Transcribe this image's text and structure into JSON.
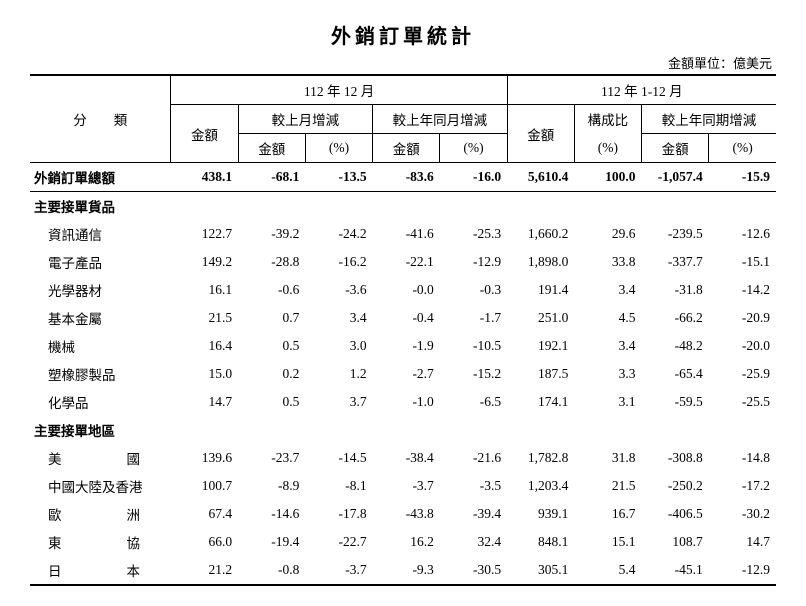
{
  "page": {
    "title": "外銷訂單統計",
    "unit_label": "金額單位：億美元",
    "background_color": "#ffffff",
    "text_color": "#000000",
    "title_fontsize": 20,
    "body_fontsize": 13.5
  },
  "header": {
    "category_label": "分　　類",
    "period_month": "112 年 12 月",
    "period_ytd": "112 年 1-12 月",
    "amount": "金額",
    "mom_change": "較上月增減",
    "yoy_change": "較上年同月增減",
    "yoy_ytd_change": "較上年同期增減",
    "share": "構成比",
    "pct": "(%)"
  },
  "rows": [
    {
      "type": "total",
      "label": "外銷訂單總額",
      "m_amt": "438.1",
      "mom_amt": "-68.1",
      "mom_pct": "-13.5",
      "yoy_amt": "-83.6",
      "yoy_pct": "-16.0",
      "y_amt": "5,610.4",
      "share": "100.0",
      "yoy_y_amt": "-1,057.4",
      "yoy_y_pct": "-15.9"
    },
    {
      "type": "section",
      "label": "主要接單貨品"
    },
    {
      "type": "data",
      "label": "資訊通信",
      "m_amt": "122.7",
      "mom_amt": "-39.2",
      "mom_pct": "-24.2",
      "yoy_amt": "-41.6",
      "yoy_pct": "-25.3",
      "y_amt": "1,660.2",
      "share": "29.6",
      "yoy_y_amt": "-239.5",
      "yoy_y_pct": "-12.6"
    },
    {
      "type": "data",
      "label": "電子產品",
      "m_amt": "149.2",
      "mom_amt": "-28.8",
      "mom_pct": "-16.2",
      "yoy_amt": "-22.1",
      "yoy_pct": "-12.9",
      "y_amt": "1,898.0",
      "share": "33.8",
      "yoy_y_amt": "-337.7",
      "yoy_y_pct": "-15.1"
    },
    {
      "type": "data",
      "label": "光學器材",
      "m_amt": "16.1",
      "mom_amt": "-0.6",
      "mom_pct": "-3.6",
      "yoy_amt": "-0.0",
      "yoy_pct": "-0.3",
      "y_amt": "191.4",
      "share": "3.4",
      "yoy_y_amt": "-31.8",
      "yoy_y_pct": "-14.2"
    },
    {
      "type": "data",
      "label": "基本金屬",
      "m_amt": "21.5",
      "mom_amt": "0.7",
      "mom_pct": "3.4",
      "yoy_amt": "-0.4",
      "yoy_pct": "-1.7",
      "y_amt": "251.0",
      "share": "4.5",
      "yoy_y_amt": "-66.2",
      "yoy_y_pct": "-20.9"
    },
    {
      "type": "data",
      "label": "機械",
      "m_amt": "16.4",
      "mom_amt": "0.5",
      "mom_pct": "3.0",
      "yoy_amt": "-1.9",
      "yoy_pct": "-10.5",
      "y_amt": "192.1",
      "share": "3.4",
      "yoy_y_amt": "-48.2",
      "yoy_y_pct": "-20.0"
    },
    {
      "type": "data",
      "label": "塑橡膠製品",
      "m_amt": "15.0",
      "mom_amt": "0.2",
      "mom_pct": "1.2",
      "yoy_amt": "-2.7",
      "yoy_pct": "-15.2",
      "y_amt": "187.5",
      "share": "3.3",
      "yoy_y_amt": "-65.4",
      "yoy_y_pct": "-25.9"
    },
    {
      "type": "data",
      "label": "化學品",
      "m_amt": "14.7",
      "mom_amt": "0.5",
      "mom_pct": "3.7",
      "yoy_amt": "-1.0",
      "yoy_pct": "-6.5",
      "y_amt": "174.1",
      "share": "3.1",
      "yoy_y_amt": "-59.5",
      "yoy_y_pct": "-25.5"
    },
    {
      "type": "section",
      "label": "主要接單地區"
    },
    {
      "type": "data",
      "label": "美　　　國",
      "justify": true,
      "m_amt": "139.6",
      "mom_amt": "-23.7",
      "mom_pct": "-14.5",
      "yoy_amt": "-38.4",
      "yoy_pct": "-21.6",
      "y_amt": "1,782.8",
      "share": "31.8",
      "yoy_y_amt": "-308.8",
      "yoy_y_pct": "-14.8"
    },
    {
      "type": "data",
      "label": "中國大陸及香港",
      "m_amt": "100.7",
      "mom_amt": "-8.9",
      "mom_pct": "-8.1",
      "yoy_amt": "-3.7",
      "yoy_pct": "-3.5",
      "y_amt": "1,203.4",
      "share": "21.5",
      "yoy_y_amt": "-250.2",
      "yoy_y_pct": "-17.2"
    },
    {
      "type": "data",
      "label": "歐　　　洲",
      "justify": true,
      "m_amt": "67.4",
      "mom_amt": "-14.6",
      "mom_pct": "-17.8",
      "yoy_amt": "-43.8",
      "yoy_pct": "-39.4",
      "y_amt": "939.1",
      "share": "16.7",
      "yoy_y_amt": "-406.5",
      "yoy_y_pct": "-30.2"
    },
    {
      "type": "data",
      "label": "東　　　協",
      "justify": true,
      "m_amt": "66.0",
      "mom_amt": "-19.4",
      "mom_pct": "-22.7",
      "yoy_amt": "16.2",
      "yoy_pct": "32.4",
      "y_amt": "848.1",
      "share": "15.1",
      "yoy_y_amt": "108.7",
      "yoy_y_pct": "14.7"
    },
    {
      "type": "data",
      "label": "日　　　本",
      "justify": true,
      "m_amt": "21.2",
      "mom_amt": "-0.8",
      "mom_pct": "-3.7",
      "yoy_amt": "-9.3",
      "yoy_pct": "-30.5",
      "y_amt": "305.1",
      "share": "5.4",
      "yoy_y_amt": "-45.1",
      "yoy_y_pct": "-12.9"
    }
  ]
}
